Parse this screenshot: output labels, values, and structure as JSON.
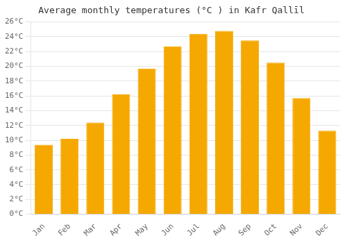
{
  "chart_data": {
    "type": "bar",
    "title": "Average monthly temperatures (°C ) in Kafr Qallīl",
    "categories": [
      "Jan",
      "Feb",
      "Mar",
      "Apr",
      "May",
      "Jun",
      "Jul",
      "Aug",
      "Sep",
      "Oct",
      "Nov",
      "Dec"
    ],
    "values": [
      9.4,
      10.2,
      12.4,
      16.2,
      19.7,
      22.7,
      24.4,
      24.8,
      23.5,
      20.5,
      15.7,
      11.3
    ],
    "color": "#F5A800",
    "ylim": [
      0,
      26
    ],
    "yticks": [
      {
        "value": 0,
        "label": "0°C"
      },
      {
        "value": 2,
        "label": "2°C"
      },
      {
        "value": 4,
        "label": "4°C"
      },
      {
        "value": 6,
        "label": "6°C"
      },
      {
        "value": 8,
        "label": "8°C"
      },
      {
        "value": 10,
        "label": "10°C"
      },
      {
        "value": 12,
        "label": "12°C"
      },
      {
        "value": 14,
        "label": "14°C"
      },
      {
        "value": 16,
        "label": "16°C"
      },
      {
        "value": 18,
        "label": "18°C"
      },
      {
        "value": 20,
        "label": "20°C"
      },
      {
        "value": 22,
        "label": "22°C"
      },
      {
        "value": 24,
        "label": "24°C"
      },
      {
        "value": 26,
        "label": "26°C"
      }
    ],
    "grid": true
  }
}
